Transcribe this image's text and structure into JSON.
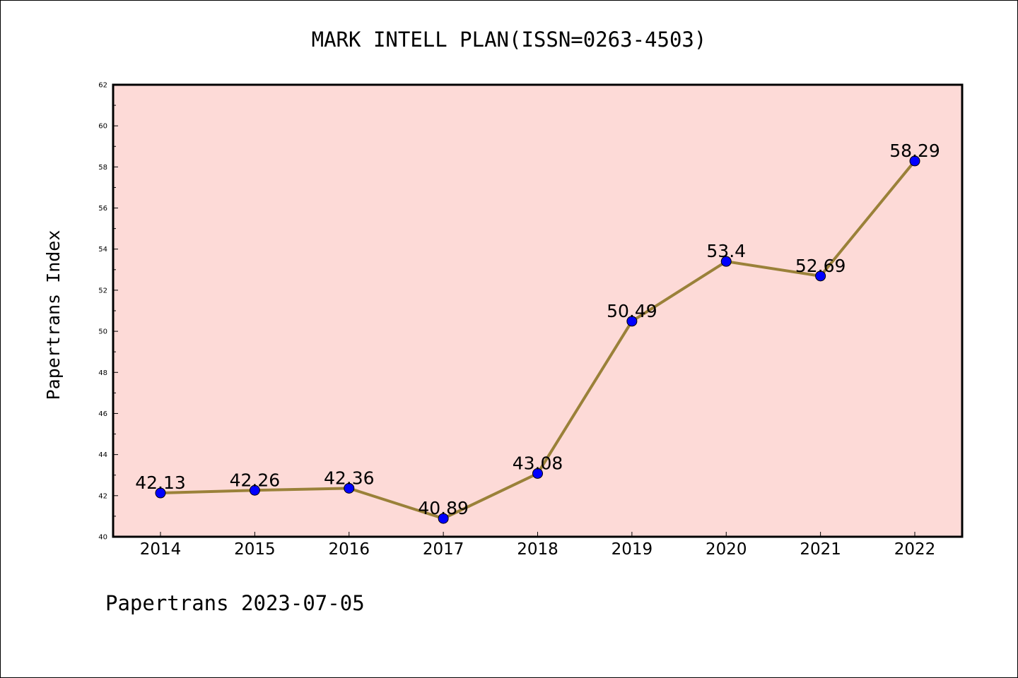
{
  "chart_data": {
    "type": "line",
    "title": "MARK INTELL PLAN(ISSN=0263-4503)",
    "xlabel": "",
    "ylabel": "Papertrans Index",
    "x": [
      "2014",
      "2015",
      "2016",
      "2017",
      "2018",
      "2019",
      "2020",
      "2021",
      "2022"
    ],
    "values": [
      42.13,
      42.26,
      42.36,
      40.89,
      43.08,
      50.49,
      53.4,
      52.69,
      58.29
    ],
    "data_labels": [
      "42.13",
      "42.26",
      "42.36",
      "40.89",
      "43.08",
      "50.49",
      "53.4",
      "52.69",
      "58.29"
    ],
    "ylim": [
      40,
      62
    ],
    "yticks": [
      "40",
      "42",
      "44",
      "46",
      "48",
      "50",
      "52",
      "54",
      "56",
      "58",
      "60",
      "62"
    ],
    "grid": false,
    "legend": "none",
    "colors": {
      "plot_background": "#fddad7",
      "line": "#9a8139",
      "marker": "#0000ff"
    }
  },
  "footer": "Papertrans 2023-07-05"
}
